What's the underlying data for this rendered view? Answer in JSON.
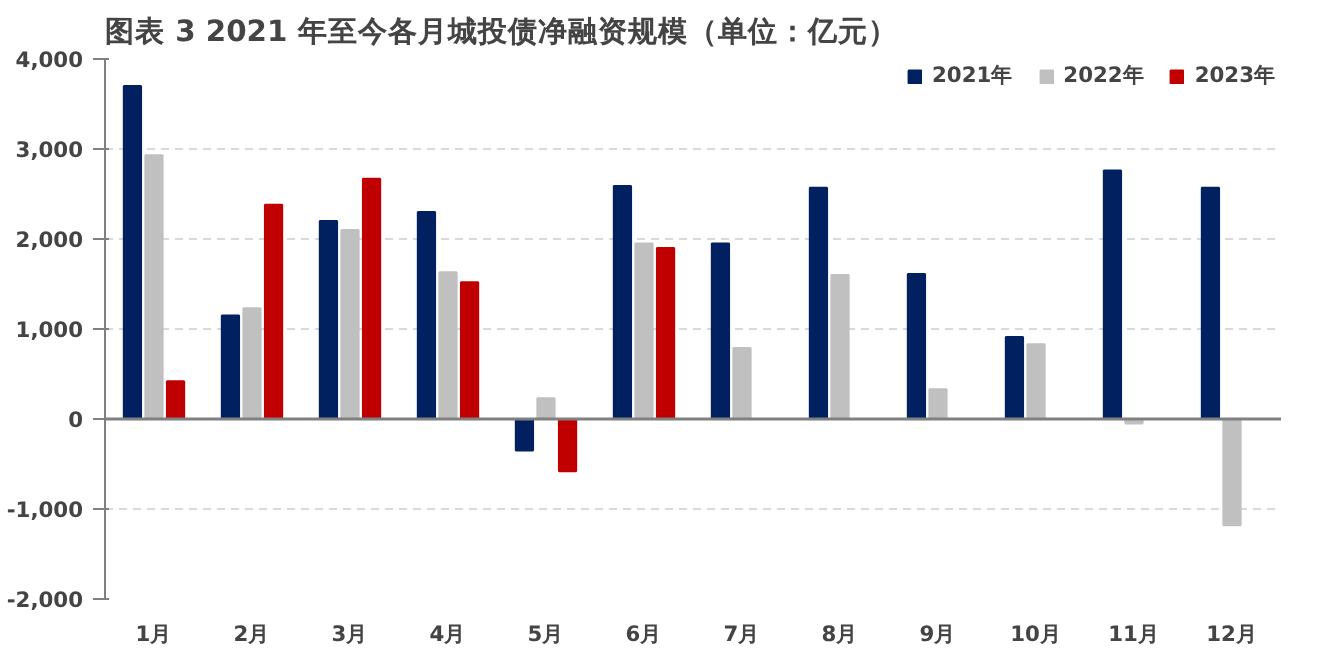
{
  "chart_data": {
    "type": "bar",
    "title": "图表 3 2021 年至今各月城投债净融资规模（单位：亿元）",
    "categories": [
      "1月",
      "2月",
      "3月",
      "4月",
      "5月",
      "6月",
      "7月",
      "8月",
      "9月",
      "10月",
      "11月",
      "12月"
    ],
    "series": [
      {
        "name": "2021年",
        "color": "#002060",
        "values": [
          3700,
          1150,
          2200,
          2300,
          -350,
          2590,
          1950,
          2570,
          1610,
          910,
          2760,
          2570
        ]
      },
      {
        "name": "2022年",
        "color": "#c0c0c0",
        "values": [
          2930,
          1230,
          2100,
          1630,
          230,
          1950,
          790,
          1600,
          330,
          830,
          -50,
          -1180
        ]
      },
      {
        "name": "2023年",
        "color": "#c00000",
        "values": [
          420,
          2380,
          2670,
          1520,
          -580,
          1900,
          null,
          null,
          null,
          null,
          null,
          null
        ]
      }
    ],
    "ylim": [
      -2000,
      4000
    ],
    "yticks": [
      {
        "value": -2000,
        "label": "-2,000"
      },
      {
        "value": -1000,
        "label": "-1,000"
      },
      {
        "value": 0,
        "label": "0"
      },
      {
        "value": 1000,
        "label": "1,000"
      },
      {
        "value": 2000,
        "label": "2,000"
      },
      {
        "value": 3000,
        "label": "3,000"
      },
      {
        "value": 4000,
        "label": "4,000"
      }
    ],
    "grid": "y",
    "legend": "top right"
  }
}
